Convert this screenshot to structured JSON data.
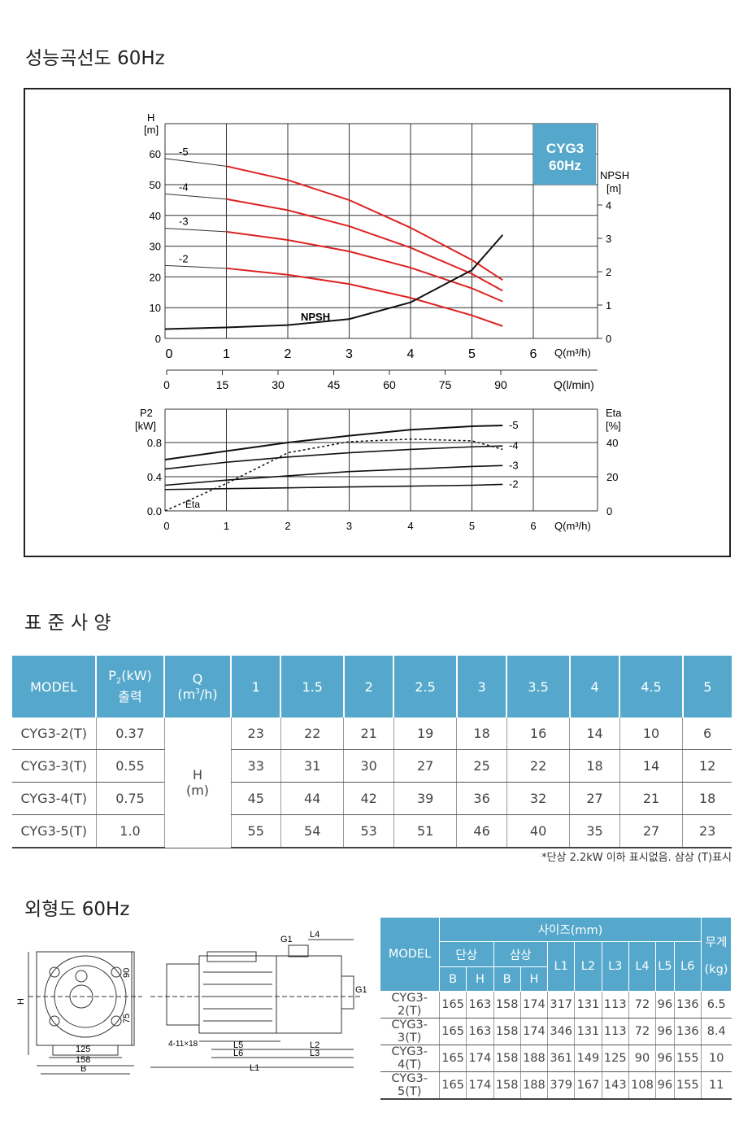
{
  "titles": {
    "curve": "성능곡선도 60Hz",
    "spec": "표 준 사 양",
    "outline": "외형도 60Hz"
  },
  "chart_data": [
    {
      "type": "line",
      "title": "CYG3 60Hz",
      "title_line1": "CYG3",
      "title_line2": "60Hz",
      "ylabel": "H [m]",
      "ylabel1": "H",
      "ylabel2": "[m]",
      "y2label1": "NPSH",
      "y2label2": "[m]",
      "xlabel": "Q(m³/h)",
      "xlabel2": "Q(l/min)",
      "xlim": [
        0,
        6.9
      ],
      "ylim": [
        0,
        70
      ],
      "y2lim": [
        0,
        4.3
      ],
      "xticks": [
        "0",
        "1",
        "2",
        "3",
        "4",
        "5",
        "6"
      ],
      "yticks": [
        "0",
        "10",
        "20",
        "30",
        "40",
        "50",
        "60"
      ],
      "y2ticks": [
        "0",
        "1",
        "2",
        "3",
        "4"
      ],
      "x2ticks": [
        "0",
        "15",
        "30",
        "45",
        "60",
        "75",
        "90"
      ],
      "x": [
        0,
        1,
        2,
        3,
        4,
        5,
        5.5
      ],
      "series": [
        {
          "name": "-5",
          "values": [
            58.5,
            56,
            51.5,
            45,
            36,
            25.5,
            19
          ]
        },
        {
          "name": "-4",
          "values": [
            47,
            45.3,
            41.7,
            36.5,
            29.5,
            21,
            15.5
          ]
        },
        {
          "name": "-3",
          "values": [
            35.8,
            34.7,
            32,
            28.3,
            23,
            16.3,
            12
          ]
        },
        {
          "name": "-2",
          "values": [
            23.7,
            22.8,
            20.7,
            17.7,
            13.2,
            7.5,
            4
          ]
        }
      ],
      "npsh": {
        "name": "NPSH",
        "values": [
          0.28,
          0.33,
          0.4,
          0.58,
          1.08,
          2.05,
          3.1
        ]
      },
      "color": "#dd2222"
    },
    {
      "type": "line",
      "ylabel1": "P2",
      "ylabel2": "[kW]",
      "y2label1": "Eta",
      "y2label2": "[%]",
      "xlabel": "Q(m³/h)",
      "ylim": [
        0,
        1.2
      ],
      "y2lim": [
        0,
        57
      ],
      "yticks": [
        "0.0",
        "0.4",
        "0.8"
      ],
      "y2ticks": [
        "0",
        "20",
        "40"
      ],
      "xticks": [
        "0",
        "1",
        "2",
        "3",
        "4",
        "5",
        "6"
      ],
      "x": [
        0,
        1,
        2,
        3,
        4,
        5,
        5.5
      ],
      "series": [
        {
          "name": "-5",
          "values": [
            0.6,
            0.7,
            0.8,
            0.88,
            0.95,
            0.99,
            1.0
          ]
        },
        {
          "name": "-4",
          "values": [
            0.49,
            0.57,
            0.63,
            0.68,
            0.72,
            0.75,
            0.76
          ]
        },
        {
          "name": "-3",
          "values": [
            0.3,
            0.36,
            0.41,
            0.46,
            0.49,
            0.52,
            0.53
          ]
        },
        {
          "name": "-2",
          "values": [
            0.25,
            0.26,
            0.27,
            0.28,
            0.29,
            0.3,
            0.31
          ]
        }
      ],
      "eta": {
        "name": "Eta",
        "values": [
          0,
          16,
          34,
          40.5,
          42,
          41,
          36
        ]
      }
    }
  ],
  "spec": {
    "headers": {
      "model": "MODEL",
      "p2a": "P",
      "p2sub": "2",
      "p2b": "(kW)",
      "p2c": "출력",
      "qa": "Q",
      "qb": "(m",
      "qsup": "3",
      "qc": "/h)",
      "q": [
        "1",
        "1.5",
        "2",
        "2.5",
        "3",
        "3.5",
        "4",
        "4.5",
        "5"
      ]
    },
    "h_label1": "H",
    "h_label2": "(m)",
    "rows": [
      {
        "model": "CYG3-2(T)",
        "p2": "0.37",
        "h": [
          "23",
          "22",
          "21",
          "19",
          "18",
          "16",
          "14",
          "10",
          "6"
        ]
      },
      {
        "model": "CYG3-3(T)",
        "p2": "0.55",
        "h": [
          "33",
          "31",
          "30",
          "27",
          "25",
          "22",
          "18",
          "14",
          "12"
        ]
      },
      {
        "model": "CYG3-4(T)",
        "p2": "0.75",
        "h": [
          "45",
          "44",
          "42",
          "39",
          "36",
          "32",
          "27",
          "21",
          "18"
        ]
      },
      {
        "model": "CYG3-5(T)",
        "p2": "1.0",
        "h": [
          "55",
          "54",
          "53",
          "51",
          "46",
          "40",
          "35",
          "27",
          "23"
        ]
      }
    ],
    "note": "*단상 2.2kW 이하 표시없음. 삼상 (T)표시"
  },
  "drawing": {
    "labels": {
      "H": "H",
      "d90": "90",
      "d75": "75",
      "d125": "125",
      "d158": "158",
      "B": "B",
      "G1a": "G1",
      "L4": "L4",
      "G1b": "G1",
      "bolt": "4-11×18",
      "L5": "L5",
      "L6": "L6",
      "L2": "L2",
      "L3": "L3",
      "L1": "L1"
    }
  },
  "dims": {
    "headers": {
      "model": "MODEL",
      "size": "사이즈(mm)",
      "single": "단상",
      "three": "삼상",
      "B": "B",
      "H": "H",
      "L1": "L1",
      "L2": "L2",
      "L3": "L3",
      "L4": "L4",
      "L5": "L5",
      "L6": "L6",
      "w1": "무게",
      "w2": "(kg)"
    },
    "rows": [
      [
        "CYG3-2(T)",
        "165",
        "163",
        "158",
        "174",
        "317",
        "131",
        "113",
        "72",
        "96",
        "136",
        "6.5"
      ],
      [
        "CYG3-3(T)",
        "165",
        "163",
        "158",
        "174",
        "346",
        "131",
        "113",
        "72",
        "96",
        "136",
        "8.4"
      ],
      [
        "CYG3-4(T)",
        "165",
        "174",
        "158",
        "188",
        "361",
        "149",
        "125",
        "90",
        "96",
        "155",
        "10"
      ],
      [
        "CYG3-5(T)",
        "165",
        "174",
        "158",
        "188",
        "379",
        "167",
        "143",
        "108",
        "96",
        "155",
        "11"
      ]
    ]
  }
}
